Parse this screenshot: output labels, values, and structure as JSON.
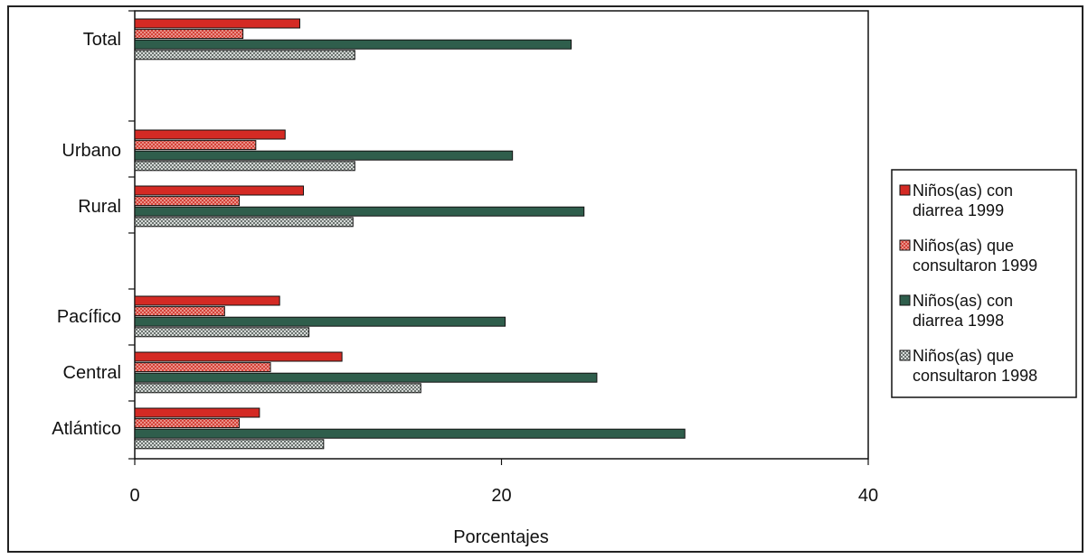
{
  "chart_data": {
    "type": "bar",
    "orientation": "horizontal",
    "title": "",
    "xlabel": "Porcentajes",
    "ylabel": "",
    "xlim": [
      0,
      40
    ],
    "xticks": [
      "0",
      "20",
      "40"
    ],
    "grid": false,
    "legend_position": "right",
    "categories": [
      "Total",
      "Urbano",
      "Rural",
      "Pacífico",
      "Central",
      "Atlántico"
    ],
    "series": [
      {
        "name": "Niños(as) con diarrea 1999",
        "legend_lines": [
          "Niños(as) con",
          "diarrea 1999"
        ],
        "color": "#d42a24",
        "pattern": "solid",
        "values": [
          9.0,
          8.2,
          9.2,
          7.9,
          11.3,
          6.8
        ]
      },
      {
        "name": "Niños(as) que consultaron 1999",
        "legend_lines": [
          "Niños(as) que",
          "consultaron 1999"
        ],
        "color": "#e05a50",
        "pattern": "crosshatch",
        "values": [
          5.9,
          6.6,
          5.7,
          4.9,
          7.4,
          5.7
        ]
      },
      {
        "name": "Niños(as) con diarrea 1998",
        "legend_lines": [
          "Niños(as) con",
          "diarrea 1998"
        ],
        "color": "#2f5e4c",
        "pattern": "solid",
        "values": [
          23.8,
          20.6,
          24.5,
          20.2,
          25.2,
          30.0
        ]
      },
      {
        "name": "Niños(as) que consultaron 1998",
        "legend_lines": [
          "Niños(as) que",
          "consultaron 1998"
        ],
        "color": "#9fa6a2",
        "pattern": "checker",
        "values": [
          12.0,
          12.0,
          11.9,
          9.5,
          15.6,
          10.3
        ]
      }
    ]
  }
}
